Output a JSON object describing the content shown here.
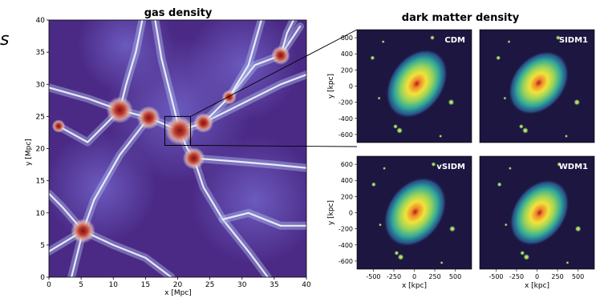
{
  "figure": {
    "corner_mark": "s",
    "colors": {
      "gas_background": "#5a3c98",
      "gas_filament": "#eef0ff",
      "gas_halo": "#c0392b",
      "dm_background": "#1c1640",
      "dm_core": "#b01e1e",
      "panel_label": "#ffffff",
      "zoom_lines": "#000000"
    },
    "colormaps": {
      "gas_density": [
        "#4b2a86",
        "#6f5fc4",
        "#aebbe8",
        "#f2f2f8",
        "#e6b2a0",
        "#c0392b",
        "#7a1414"
      ],
      "dark_matter_density": [
        "#1c1640",
        "#2b5f9a",
        "#2fa89a",
        "#9ad45a",
        "#f2e23a",
        "#f08a2a",
        "#b01e1e"
      ]
    }
  },
  "chart_data": [
    {
      "type": "heatmap",
      "title": "gas density",
      "xlabel": "x [Mpc]",
      "ylabel": "y [Mpc]",
      "xlim": [
        0,
        40
      ],
      "ylim": [
        0,
        40
      ],
      "xticks": [
        "0",
        "5",
        "10",
        "15",
        "20",
        "25",
        "30",
        "35",
        "40"
      ],
      "yticks": [
        "0",
        "5",
        "10",
        "15",
        "20",
        "25",
        "30",
        "35",
        "40"
      ],
      "halos": [
        {
          "x": 11,
          "y": 26,
          "strength": 0.9
        },
        {
          "x": 15.5,
          "y": 24.8,
          "strength": 0.75
        },
        {
          "x": 20.3,
          "y": 22.8,
          "strength": 1.0
        },
        {
          "x": 24,
          "y": 24,
          "strength": 0.6
        },
        {
          "x": 22.5,
          "y": 18.5,
          "strength": 0.7
        },
        {
          "x": 5.3,
          "y": 7.2,
          "strength": 0.8
        },
        {
          "x": 36,
          "y": 34.5,
          "strength": 0.55
        },
        {
          "x": 28,
          "y": 28,
          "strength": 0.35
        },
        {
          "x": 1.5,
          "y": 23.5,
          "strength": 0.3
        }
      ],
      "zoom_box": {
        "x0": 18,
        "x1": 22,
        "y0": 20.5,
        "y1": 25
      }
    },
    {
      "type": "heatmap",
      "group_title": "dark matter density",
      "panels": [
        {
          "label": "CDM",
          "core": {
            "x": 30,
            "y": 30
          },
          "rx": 330,
          "ry": 470,
          "angle": 35
        },
        {
          "label": "SIDM1",
          "core": {
            "x": 20,
            "y": 40
          },
          "rx": 320,
          "ry": 440,
          "angle": 40
        },
        {
          "label": "vSIDM",
          "core": {
            "x": 10,
            "y": 10
          },
          "rx": 340,
          "ry": 470,
          "angle": 35
        },
        {
          "label": "WDM1",
          "core": {
            "x": 30,
            "y": 0
          },
          "rx": 320,
          "ry": 450,
          "angle": 35
        }
      ],
      "xlabel": "x [kpc]",
      "ylabel": "y [kpc]",
      "xlim": [
        -700,
        700
      ],
      "ylim": [
        -700,
        700
      ],
      "xticks": [
        "-500",
        "-250",
        "0",
        "250",
        "500"
      ],
      "yticks": [
        "600",
        "400",
        "200",
        "0",
        "-200",
        "-400",
        "-600"
      ]
    }
  ]
}
